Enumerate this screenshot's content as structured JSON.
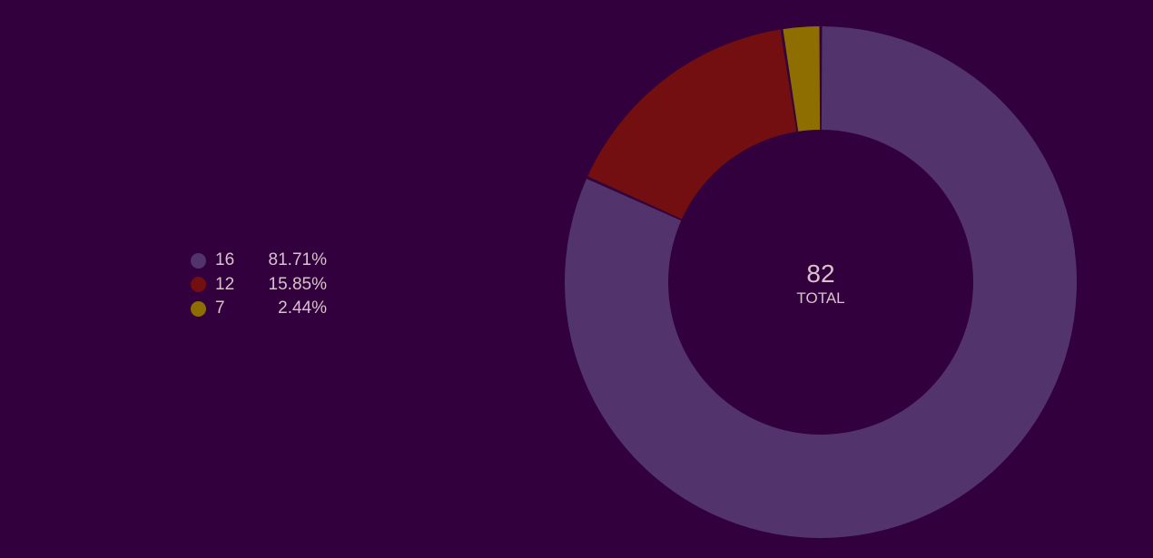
{
  "chart_data": {
    "type": "pie",
    "variant": "donut",
    "slices": [
      {
        "label": "16",
        "value": 67,
        "percent": "81.71%",
        "color": "#52336b"
      },
      {
        "label": "12",
        "value": 13,
        "percent": "15.85%",
        "color": "#730f11"
      },
      {
        "label": "7",
        "value": 2,
        "percent": "2.44%",
        "color": "#8e6e00"
      }
    ],
    "center": {
      "value": "82",
      "label": "TOTAL"
    },
    "legend_position": "left",
    "background": "#32003c",
    "text_color": "#d8c2cc"
  }
}
